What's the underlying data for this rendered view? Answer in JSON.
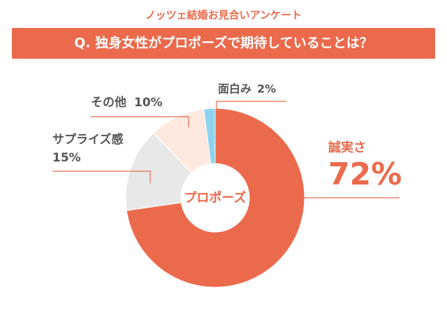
{
  "chart_data": {
    "type": "donut",
    "title": "ノッツェ結婚お見合いアンケート",
    "subtitle": "Q. 独身女性がプロポーズで期待していることは？",
    "center_label": "プロポーズ",
    "categories": [
      "誠実さ",
      "サプライズ感",
      "その他",
      "面白み"
    ],
    "values": [
      72,
      15,
      10,
      2
    ],
    "value_labels": [
      "72%",
      "15%",
      "10%",
      "2%"
    ],
    "colors": [
      "#ec6a4c",
      "#e8e8e8",
      "#fde9df",
      "#8dd3f0"
    ]
  }
}
